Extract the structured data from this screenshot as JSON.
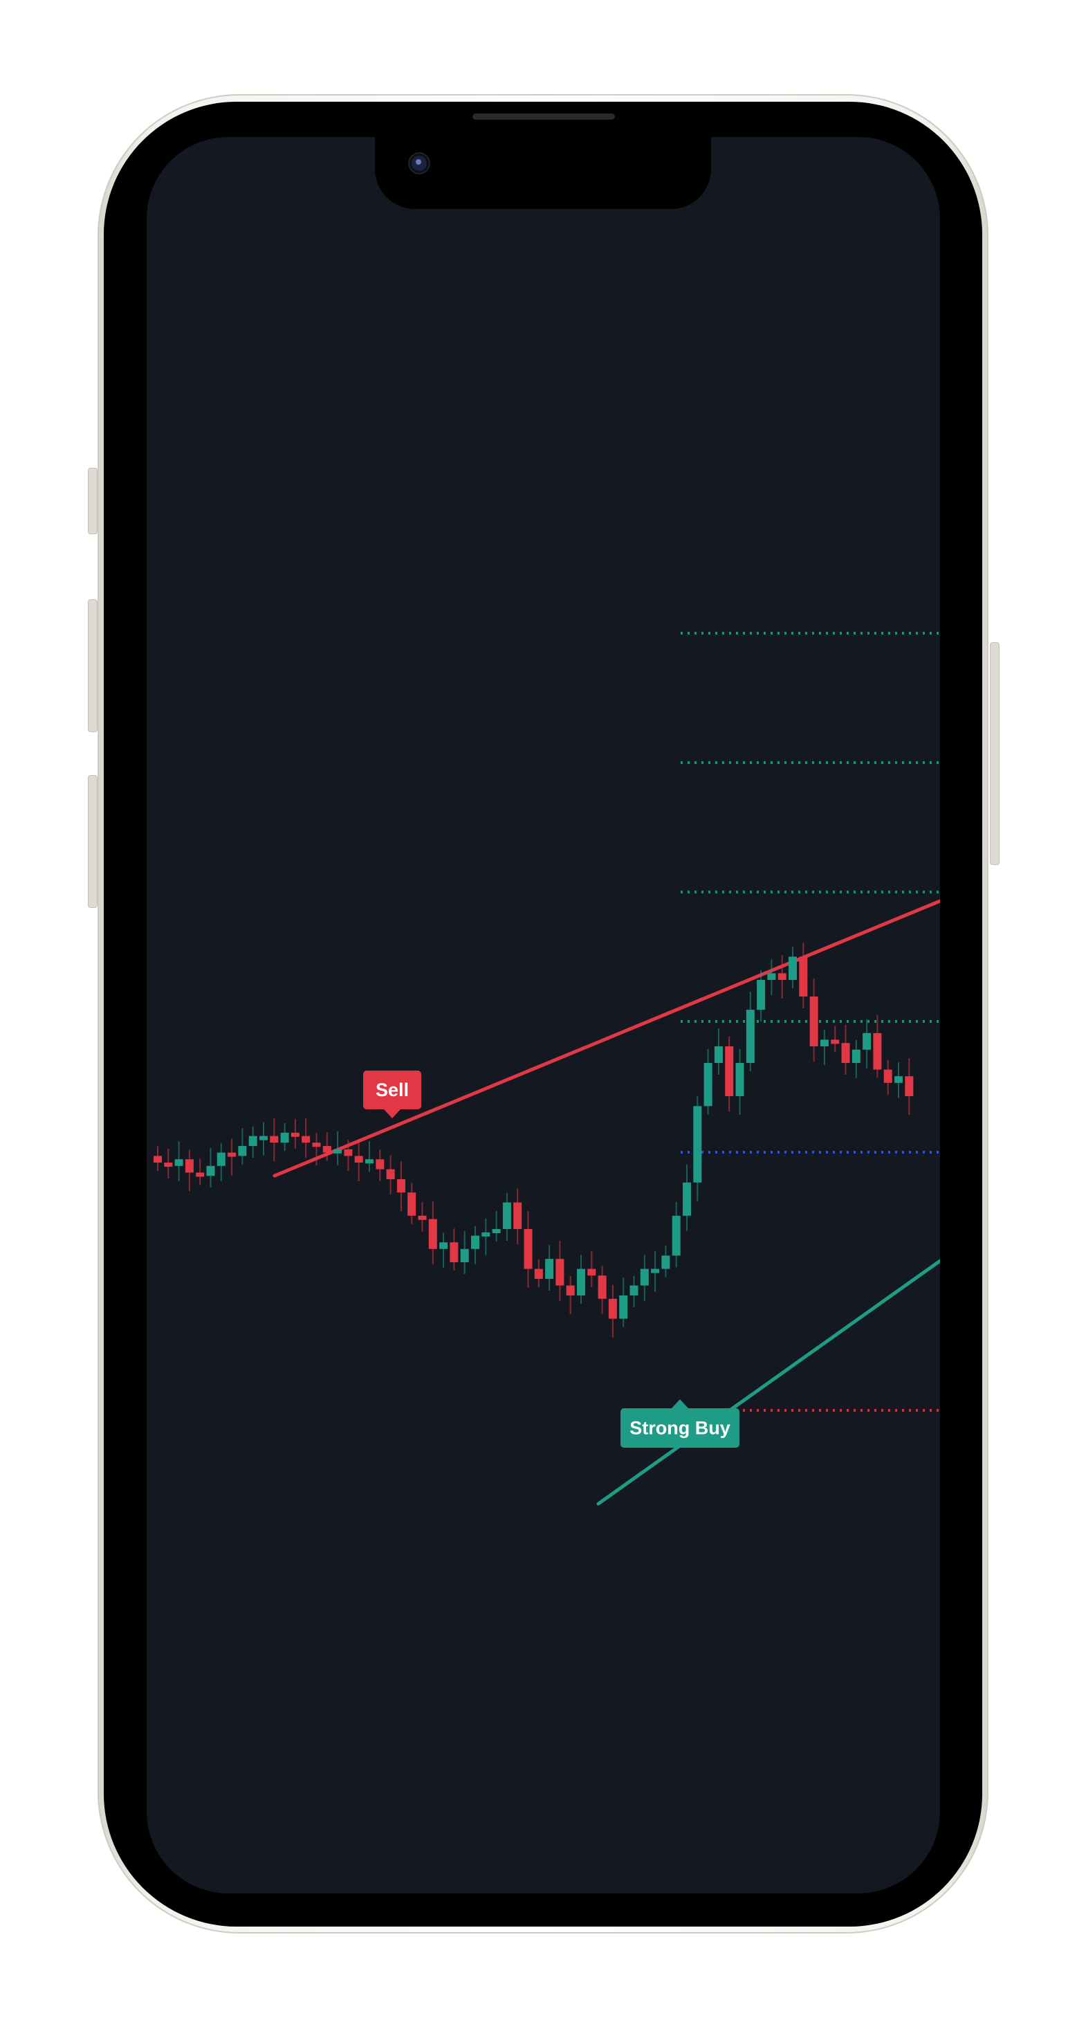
{
  "device": {
    "type": "phone-mockup",
    "frame_color": "#f2f0eb",
    "screen_color": "#141821"
  },
  "chart_data": {
    "type": "candlestick",
    "theme": "dark",
    "background": "#141821",
    "up_color": "#1f9c86",
    "down_color": "#e23846",
    "closes": [
      100,
      99,
      101,
      97,
      96,
      99,
      103,
      102,
      105,
      108,
      108,
      106,
      109,
      108,
      106,
      105,
      103,
      104,
      102,
      100,
      101,
      98,
      95,
      91,
      84,
      83,
      74,
      76,
      70,
      74,
      78,
      79,
      80,
      88,
      80,
      68,
      65,
      71,
      63,
      60,
      68,
      66,
      59,
      53,
      60,
      63,
      68,
      68,
      72,
      84,
      94,
      117,
      130,
      135,
      120,
      130,
      146,
      155,
      157,
      155,
      162,
      150,
      135,
      137,
      136,
      130,
      134,
      139,
      128,
      124,
      126,
      120
    ],
    "annotations": [
      {
        "label": "Sell",
        "type": "sell",
        "color": "#e23846",
        "index": 8
      },
      {
        "label": "Strong Buy",
        "type": "buy",
        "color": "#1f9c86",
        "index": 46
      }
    ],
    "trendlines": [
      {
        "name": "resistance",
        "color": "#e23846"
      },
      {
        "name": "support",
        "color": "#1f9c86"
      }
    ],
    "levels": [
      {
        "style": "dotted",
        "color": "#1f9c86"
      },
      {
        "style": "dotted",
        "color": "#1f9c86"
      },
      {
        "style": "dotted",
        "color": "#1f9c86"
      },
      {
        "style": "dotted",
        "color": "#1f9c86"
      },
      {
        "style": "dotted",
        "color": "#3b57d9"
      },
      {
        "style": "dotted",
        "color": "#e23846"
      }
    ]
  }
}
